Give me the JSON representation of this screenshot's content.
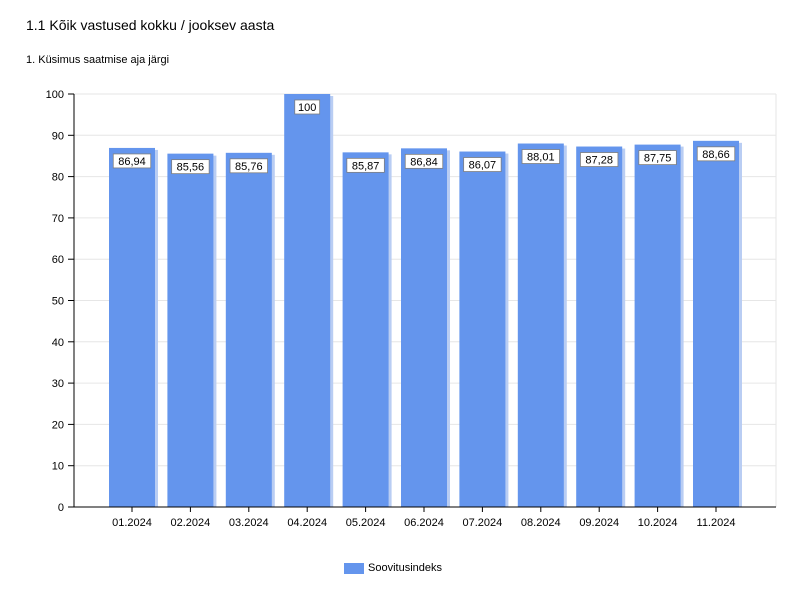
{
  "title": "1.1 Kõik vastused kokku / jooksev aasta",
  "subtitle": "1. Küsimus saatmise aja järgi",
  "colors": {
    "bar": "#6495ed",
    "bar_shadow": "#b9cdf3",
    "grid": "#e6e6e6",
    "axis": "#000000"
  },
  "chart_data": {
    "type": "bar",
    "categories": [
      "01.2024",
      "02.2024",
      "03.2024",
      "04.2024",
      "05.2024",
      "06.2024",
      "07.2024",
      "08.2024",
      "09.2024",
      "10.2024",
      "11.2024"
    ],
    "series": [
      {
        "name": "Soovitusindeks",
        "values": [
          86.94,
          85.56,
          85.76,
          100,
          85.87,
          86.84,
          86.07,
          88.01,
          87.28,
          87.75,
          88.66
        ]
      }
    ],
    "value_labels": [
      "86,94",
      "85,56",
      "85,76",
      "100",
      "85,87",
      "86,84",
      "86,07",
      "88,01",
      "87,28",
      "87,75",
      "88,66"
    ],
    "yticks": [
      0,
      10,
      20,
      30,
      40,
      50,
      60,
      70,
      80,
      90,
      100
    ],
    "ylim": [
      0,
      100
    ],
    "grid": true,
    "legend": "bottom-center"
  }
}
